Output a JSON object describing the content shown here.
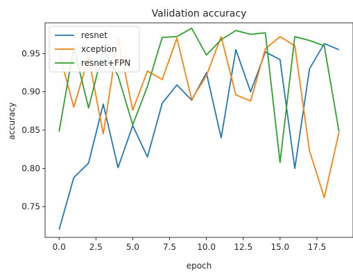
{
  "chart_data": {
    "type": "line",
    "title": "Validation accuracy",
    "xlabel": "epoch",
    "ylabel": "accuracy",
    "xlim": [
      -0.95,
      19.95
    ],
    "ylim": [
      0.71,
      0.99
    ],
    "xticks": [
      0.0,
      2.5,
      5.0,
      7.5,
      10.0,
      12.5,
      15.0,
      17.5
    ],
    "xtick_labels": [
      "0.0",
      "2.5",
      "5.0",
      "7.5",
      "10.0",
      "12.5",
      "15.0",
      "17.5"
    ],
    "yticks": [
      0.75,
      0.8,
      0.85,
      0.9,
      0.95
    ],
    "ytick_labels": [
      "0.75",
      "0.80",
      "0.85",
      "0.90",
      "0.95"
    ],
    "grid": false,
    "legend_position": "top-left",
    "x": [
      0,
      1,
      2,
      3,
      4,
      5,
      6,
      7,
      8,
      9,
      10,
      11,
      12,
      13,
      14,
      15,
      16,
      17,
      18,
      19
    ],
    "series": [
      {
        "name": "resnet",
        "color": "#1f77b4",
        "values": [
          0.72,
          0.788,
          0.807,
          0.884,
          0.801,
          0.856,
          0.815,
          0.885,
          0.909,
          0.889,
          0.925,
          0.84,
          0.955,
          0.9,
          0.952,
          0.942,
          0.8,
          0.93,
          0.963,
          0.955
        ]
      },
      {
        "name": "xception",
        "color": "#ff7f0e",
        "values": [
          0.951,
          0.88,
          0.945,
          0.845,
          0.97,
          0.876,
          0.927,
          0.916,
          0.97,
          0.89,
          0.921,
          0.972,
          0.896,
          0.888,
          0.956,
          0.972,
          0.96,
          0.823,
          0.762,
          0.847
        ]
      },
      {
        "name": "resnet+FPN",
        "color": "#2ca02c",
        "values": [
          0.848,
          0.958,
          0.879,
          0.955,
          0.921,
          0.857,
          0.907,
          0.971,
          0.972,
          0.983,
          0.948,
          0.968,
          0.98,
          0.975,
          0.977,
          0.808,
          0.972,
          0.967,
          0.96,
          0.848
        ]
      }
    ]
  }
}
